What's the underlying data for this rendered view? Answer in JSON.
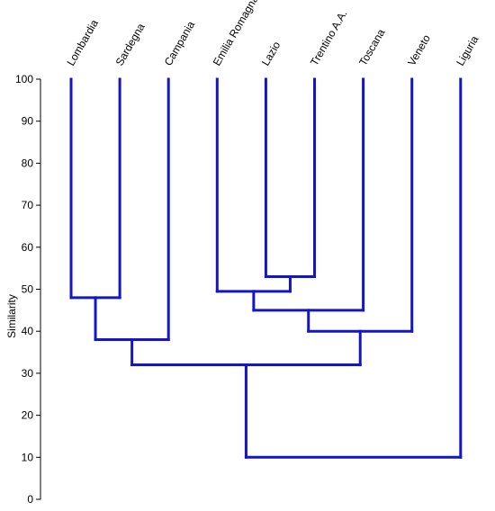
{
  "chart_data": {
    "type": "dendrogram",
    "ylabel": "Similarity",
    "ylim": [
      0,
      100
    ],
    "yticks": [
      0,
      10,
      20,
      30,
      40,
      50,
      60,
      70,
      80,
      90,
      100
    ],
    "leaves": [
      "Lombardia",
      "Sardegna",
      "Campania",
      "Emilia Romagna",
      "Lazio",
      "Trentino A.A.",
      "Toscana",
      "Veneto",
      "Liguria"
    ],
    "top": 100,
    "merges": [
      {
        "id": "c1",
        "left": "Lombardia",
        "right": "Sardegna",
        "similarity": 48
      },
      {
        "id": "c2",
        "left": "c1",
        "right": "Campania",
        "similarity": 38
      },
      {
        "id": "c3",
        "left": "Lazio",
        "right": "Trentino A.A.",
        "similarity": 53
      },
      {
        "id": "c4",
        "left": "Emilia Romagna",
        "right": "c3",
        "similarity": 49.5
      },
      {
        "id": "c5",
        "left": "c4",
        "right": "Toscana",
        "similarity": 45
      },
      {
        "id": "c6",
        "left": "c5",
        "right": "Veneto",
        "similarity": 40
      },
      {
        "id": "c7",
        "left": "c2",
        "right": "c6",
        "similarity": 32
      },
      {
        "id": "c8",
        "left": "c7",
        "right": "Liguria",
        "similarity": 10
      }
    ],
    "colors": {
      "branch": "#1515c8",
      "axis": "#000000"
    }
  }
}
